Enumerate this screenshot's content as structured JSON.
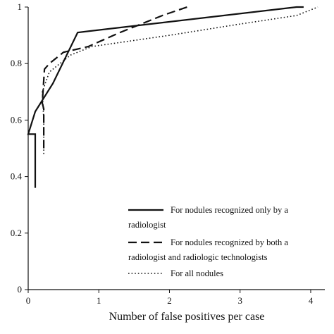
{
  "chart_data": {
    "type": "line",
    "title": "",
    "xlabel": "Number of false positives per case",
    "ylabel": "",
    "xlim": [
      0,
      4.2
    ],
    "ylim": [
      0,
      1
    ],
    "x_ticks": [
      "0",
      "1",
      "2",
      "3",
      "4"
    ],
    "y_ticks": [
      "0",
      "0.2",
      "0.4",
      "0.6",
      "0.8",
      "1"
    ],
    "grid": false,
    "legend_position": "bottom-right",
    "series": [
      {
        "name": "For nodules recognized only by a radiologist",
        "name_lines": [
          "For nodules recognized only by a",
          "radiologist"
        ],
        "style": "solid",
        "x": [
          0.1,
          0.1,
          0.0,
          0.1,
          0.35,
          0.7,
          3.8,
          3.9
        ],
        "y": [
          0.36,
          0.55,
          0.55,
          0.63,
          0.73,
          0.91,
          1.0,
          1.0
        ]
      },
      {
        "name": "For nodules recognized by both a radiologist and radiologic technologists",
        "name_lines": [
          "For nodules recognized by both a",
          "radiologist and radiologic technologists"
        ],
        "style": "dashed",
        "x": [
          0.22,
          0.22,
          0.2,
          0.23,
          0.3,
          0.5,
          0.85,
          1.3,
          1.9,
          2.25
        ],
        "y": [
          0.5,
          0.64,
          0.66,
          0.78,
          0.8,
          0.84,
          0.86,
          0.91,
          0.97,
          1.0
        ]
      },
      {
        "name": "For all nodules",
        "name_lines": [
          "For all nodules"
        ],
        "style": "dotted",
        "x": [
          0.22,
          0.22,
          0.2,
          0.3,
          0.6,
          0.9,
          2.0,
          3.0,
          3.8,
          4.1
        ],
        "y": [
          0.48,
          0.6,
          0.7,
          0.77,
          0.83,
          0.86,
          0.9,
          0.94,
          0.97,
          1.0
        ]
      }
    ]
  }
}
